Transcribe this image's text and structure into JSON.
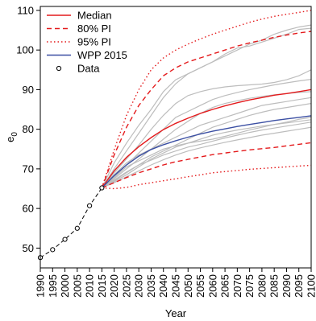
{
  "chart_data": {
    "type": "line",
    "xlabel": "Year",
    "ylabel_main": "e",
    "ylabel_sub": "0",
    "xlim": [
      1990,
      2100
    ],
    "ylim": [
      45,
      111
    ],
    "grid": false,
    "legend_position": "top-left",
    "x_ticks": [
      1990,
      1995,
      2000,
      2005,
      2010,
      2015,
      2020,
      2025,
      2030,
      2035,
      2040,
      2045,
      2050,
      2055,
      2060,
      2065,
      2070,
      2075,
      2080,
      2085,
      2090,
      2095,
      2100
    ],
    "y_ticks": [
      50,
      60,
      70,
      80,
      90,
      100,
      110
    ],
    "colors": {
      "median": "#e41a1c",
      "pi": "#e41a1c",
      "wpp": "#3b4fa3",
      "trajectory": "#bdbdbd",
      "data": "#000000"
    },
    "legend": [
      {
        "label": "Median",
        "style": "solid",
        "color": "#e41a1c"
      },
      {
        "label": "80% PI",
        "style": "dashed",
        "color": "#e41a1c"
      },
      {
        "label": "95% PI",
        "style": "dotted",
        "color": "#e41a1c"
      },
      {
        "label": "WPP 2015",
        "style": "solid",
        "color": "#3b4fa3"
      },
      {
        "label": "Data",
        "style": "circle",
        "color": "#000000"
      }
    ],
    "observed": {
      "x": [
        1990,
        1995,
        2000,
        2005,
        2010,
        2015
      ],
      "y": [
        47.6,
        49.6,
        52.2,
        55.0,
        60.7,
        65.2
      ]
    },
    "proj_x": [
      2015,
      2020,
      2025,
      2030,
      2035,
      2040,
      2045,
      2050,
      2055,
      2060,
      2065,
      2070,
      2075,
      2080,
      2085,
      2090,
      2095,
      2100
    ],
    "series": [
      {
        "name": "Median",
        "style": "solid",
        "values": [
          65.2,
          69.5,
          72.9,
          75.6,
          77.9,
          79.9,
          81.5,
          82.8,
          84.0,
          85.0,
          85.9,
          86.7,
          87.4,
          88.0,
          88.6,
          89.0,
          89.5,
          90.0
        ]
      },
      {
        "name": "80% PI",
        "style": "dashed",
        "values": [
          65.2,
          73.5,
          80.5,
          86.0,
          90.0,
          93.5,
          95.5,
          97.0,
          98.0,
          99.0,
          100.0,
          101.0,
          101.8,
          102.5,
          103.2,
          103.8,
          104.3,
          104.7
        ]
      },
      {
        "name": "80% PI",
        "style": "dashed",
        "values": [
          65.2,
          66.5,
          67.8,
          69.0,
          70.0,
          71.0,
          71.8,
          72.4,
          73.0,
          73.6,
          74.0,
          74.4,
          74.8,
          75.1,
          75.4,
          75.8,
          76.2,
          76.6
        ]
      },
      {
        "name": "95% PI",
        "style": "dotted",
        "values": [
          65.2,
          74.8,
          83.5,
          90.0,
          95.0,
          98.0,
          100.0,
          101.5,
          102.8,
          104.0,
          105.0,
          106.0,
          107.0,
          107.8,
          108.5,
          109.0,
          109.5,
          110.0
        ]
      },
      {
        "name": "95% PI",
        "style": "dotted",
        "values": [
          65.2,
          65.0,
          65.3,
          66.0,
          66.5,
          67.0,
          67.5,
          68.0,
          68.5,
          69.0,
          69.3,
          69.6,
          69.9,
          70.1,
          70.3,
          70.5,
          70.7,
          70.9
        ]
      },
      {
        "name": "WPP 2015",
        "style": "solid",
        "values": [
          65.2,
          68.3,
          71.0,
          73.2,
          74.9,
          76.1,
          77.1,
          78.0,
          78.8,
          79.5,
          80.1,
          80.7,
          81.2,
          81.7,
          82.2,
          82.6,
          83.0,
          83.4
        ]
      }
    ],
    "trajectories": [
      [
        65.2,
        70.0,
        74.5,
        79.0,
        83.5,
        88.0,
        91.5,
        94.0,
        95.5,
        97.0,
        98.5,
        100.0,
        101.5,
        102.5,
        104.0,
        105.0,
        105.8,
        106.3
      ],
      [
        65.2,
        71.5,
        76.5,
        81.0,
        85.0,
        89.5,
        92.5,
        94.0,
        95.5,
        97.0,
        99.0,
        100.5,
        101.0,
        102.0,
        103.0,
        104.0,
        105.2,
        105.5
      ],
      [
        65.2,
        69.0,
        72.5,
        76.0,
        80.0,
        83.5,
        86.5,
        88.5,
        89.5,
        90.2,
        90.7,
        91.0,
        91.2,
        91.4,
        91.8,
        92.5,
        93.5,
        95.0
      ],
      [
        65.2,
        68.0,
        71.0,
        74.0,
        77.0,
        80.0,
        83.0,
        84.5,
        86.0,
        87.5,
        88.5,
        89.3,
        90.0,
        90.6,
        91.2,
        91.7,
        92.2,
        92.6
      ],
      [
        65.2,
        67.5,
        70.0,
        72.5,
        75.0,
        77.5,
        80.0,
        82.0,
        84.0,
        85.5,
        86.5,
        87.2,
        87.8,
        88.3,
        88.7,
        89.0,
        89.3,
        89.5
      ],
      [
        65.2,
        68.5,
        71.5,
        73.5,
        75.0,
        76.5,
        78.0,
        79.5,
        81.0,
        82.0,
        83.0,
        84.0,
        85.0,
        86.0,
        86.5,
        87.0,
        87.5,
        88.0
      ],
      [
        65.2,
        67.0,
        69.0,
        71.0,
        73.0,
        74.5,
        76.0,
        77.5,
        79.0,
        80.5,
        81.5,
        82.5,
        83.5,
        84.3,
        85.0,
        85.5,
        86.0,
        86.5
      ],
      [
        65.2,
        66.8,
        68.5,
        70.5,
        72.5,
        74.0,
        75.5,
        76.5,
        77.5,
        78.5,
        79.2,
        79.8,
        80.3,
        80.8,
        81.2,
        81.6,
        82.0,
        82.4
      ],
      [
        65.2,
        67.8,
        70.5,
        72.0,
        73.5,
        75.0,
        75.8,
        76.5,
        77.0,
        77.5,
        78.2,
        79.0,
        79.8,
        80.5,
        81.2,
        81.8,
        82.5,
        83.0
      ],
      [
        65.2,
        67.2,
        69.2,
        71.0,
        72.2,
        73.5,
        74.5,
        75.5,
        76.2,
        77.0,
        77.8,
        78.5,
        79.2,
        79.8,
        80.3,
        80.8,
        81.3,
        81.8
      ],
      [
        65.2,
        66.5,
        68.0,
        69.5,
        71.0,
        72.3,
        73.5,
        74.5,
        75.3,
        76.0,
        76.7,
        77.3,
        77.9,
        78.5,
        79.0,
        79.5,
        80.0,
        80.5
      ]
    ]
  }
}
